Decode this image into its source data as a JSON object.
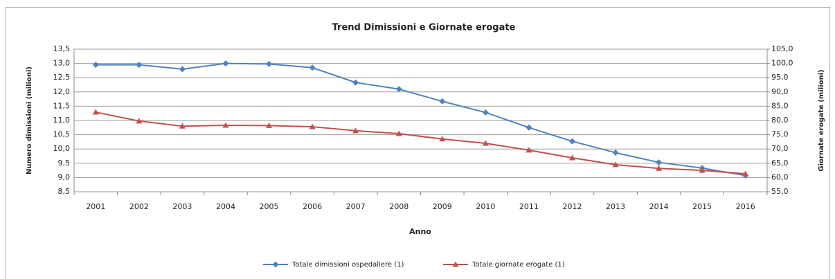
{
  "chart_data": {
    "type": "line",
    "title": "Trend Dimissioni e Giornate erogate",
    "xlabel": "Anno",
    "ylabel": "Numero dimissioni (milioni)",
    "y2label": "Giornate erogate (milioni)",
    "categories": [
      "2001",
      "2002",
      "2003",
      "2004",
      "2005",
      "2006",
      "2007",
      "2008",
      "2009",
      "2010",
      "2011",
      "2012",
      "2013",
      "2014",
      "2015",
      "2016"
    ],
    "series": [
      {
        "name": "Totale dimissioni ospedaliere (1)",
        "color": "#4f81bd",
        "marker": "diamond",
        "values": [
          12.95,
          12.95,
          12.8,
          13.0,
          12.98,
          12.85,
          12.33,
          12.1,
          11.67,
          11.28,
          10.75,
          10.27,
          9.87,
          9.53,
          9.33,
          9.07
        ]
      },
      {
        "name": "Totale giornate erogate (1)",
        "color": "#c0504d",
        "marker": "triangle",
        "axis": "y2",
        "values": [
          82.9,
          79.8,
          78.0,
          78.3,
          78.2,
          77.8,
          76.4,
          75.4,
          73.5,
          72.0,
          69.6,
          66.9,
          64.5,
          63.2,
          62.5,
          61.3
        ]
      }
    ],
    "ylim": [
      8.5,
      13.5
    ],
    "yticks": [
      {
        "value": 8.5,
        "label": "8,5"
      },
      {
        "value": 9,
        "label": "9,0"
      },
      {
        "value": 9.5,
        "label": "9,5"
      },
      {
        "value": 10,
        "label": "10,0"
      },
      {
        "value": 10.5,
        "label": "10,5"
      },
      {
        "value": 11,
        "label": "11,0"
      },
      {
        "value": 11.5,
        "label": "11,5"
      },
      {
        "value": 12,
        "label": "12,0"
      },
      {
        "value": 12.5,
        "label": "12,5"
      },
      {
        "value": 13,
        "label": "13,0"
      },
      {
        "value": 13.5,
        "label": "13,5"
      }
    ],
    "y2lim": [
      55,
      105
    ],
    "y2ticks": [
      {
        "value": 55,
        "label": "55,0"
      },
      {
        "value": 60,
        "label": "60,0"
      },
      {
        "value": 65,
        "label": "65,0"
      },
      {
        "value": 70,
        "label": "70,0"
      },
      {
        "value": 75,
        "label": "75,0"
      },
      {
        "value": 80,
        "label": "80,0"
      },
      {
        "value": 85,
        "label": "85,0"
      },
      {
        "value": 90,
        "label": "90,0"
      },
      {
        "value": 95,
        "label": "95,0"
      },
      {
        "value": 100,
        "label": "100,0"
      },
      {
        "value": 105,
        "label": "105,0"
      }
    ],
    "grid": true,
    "legend": "bottom"
  }
}
